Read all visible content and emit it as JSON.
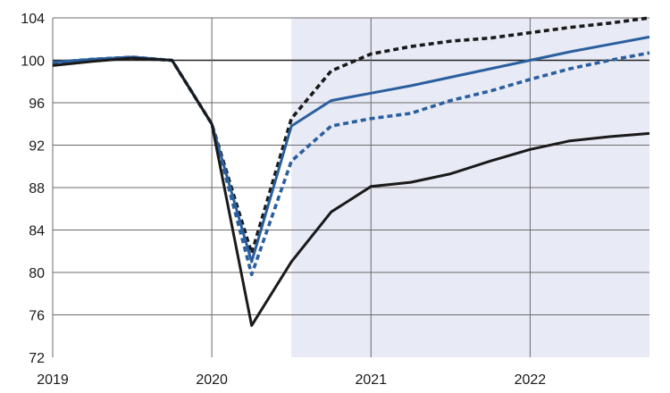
{
  "chart_data": {
    "type": "line",
    "title": "",
    "xlabel": "",
    "ylabel": "",
    "x_ticks": [
      "2019",
      "2020",
      "2021",
      "2022"
    ],
    "y_ticks": [
      72,
      76,
      80,
      84,
      88,
      92,
      96,
      100,
      104
    ],
    "ylim": [
      72,
      104
    ],
    "xlim": [
      2019.0,
      2022.75
    ],
    "grid": true,
    "legend": "none",
    "projection_shading": {
      "from": 2020.5,
      "to": 2022.75,
      "color": "#e8eaf6"
    },
    "x": [
      2019.0,
      2019.25,
      2019.5,
      2019.75,
      2020.0,
      2020.25,
      2020.5,
      2020.75,
      2021.0,
      2021.25,
      2021.5,
      2021.75,
      2022.0,
      2022.25,
      2022.5,
      2022.75
    ],
    "series": [
      {
        "style": "dotted",
        "color": "#1a1a1a",
        "values": [
          99.7,
          100.0,
          100.2,
          100.0,
          94.0,
          81.8,
          94.5,
          99.0,
          100.6,
          101.3,
          101.8,
          102.1,
          102.6,
          103.1,
          103.5,
          104.0
        ]
      },
      {
        "style": "solid",
        "color": "#2a5f9e",
        "values": [
          99.8,
          100.1,
          100.3,
          100.0,
          94.0,
          81.0,
          93.8,
          96.2,
          96.9,
          97.6,
          98.4,
          99.2,
          100.0,
          100.8,
          101.5,
          102.2
        ]
      },
      {
        "style": "dotted",
        "color": "#2a5f9e",
        "values": [
          99.8,
          100.1,
          100.3,
          100.0,
          94.0,
          79.8,
          90.5,
          93.8,
          94.5,
          95.0,
          96.2,
          97.1,
          98.2,
          99.2,
          100.0,
          100.7
        ]
      },
      {
        "style": "solid",
        "color": "#1a1a1a",
        "values": [
          99.5,
          99.9,
          100.2,
          100.0,
          94.0,
          75.0,
          81.0,
          85.7,
          88.1,
          88.5,
          89.3,
          90.5,
          91.6,
          92.4,
          92.8,
          93.1
        ]
      }
    ]
  }
}
